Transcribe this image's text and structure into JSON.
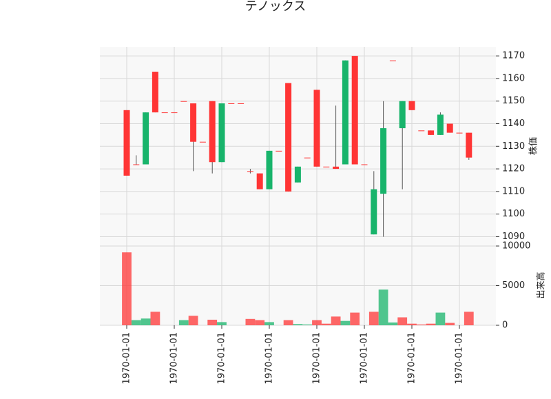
{
  "chart_data": {
    "type": "candlestick",
    "title": "テノックス",
    "ylabel": "株価",
    "volume_label": "出来高",
    "categories": [
      "1970-01-01",
      null,
      null,
      null,
      null,
      "1970-01-01",
      null,
      null,
      null,
      null,
      "1970-01-01",
      null,
      null,
      null,
      null,
      "1970-01-01",
      null,
      null,
      null,
      null,
      "1970-01-01",
      null,
      null,
      null,
      null,
      "1970-01-01",
      null,
      null,
      null,
      null,
      "1970-01-01",
      null,
      null,
      null,
      null,
      "1970-01-01",
      null
    ],
    "open": [
      1146,
      1122,
      1122,
      1163,
      1145,
      1145,
      1150,
      1149,
      1132,
      1150,
      1123,
      1149,
      1149,
      1119,
      1118,
      1111,
      1128,
      1158,
      1114,
      1125,
      1155,
      1121,
      1121,
      1122,
      1170,
      1122,
      1091,
      1109,
      1168,
      1138,
      1150,
      1137,
      1137,
      1135,
      1140,
      1136,
      1136
    ],
    "high": [
      1146,
      1126,
      1145,
      1163,
      1145,
      1145,
      1150,
      1149,
      1132,
      1150,
      1149,
      1149,
      1149,
      1120,
      1118,
      1128,
      1128,
      1158,
      1121,
      1125,
      1155,
      1121,
      1148,
      1168,
      1170,
      1122,
      1119,
      1150,
      1168,
      1150,
      1150,
      1137,
      1137,
      1145,
      1140,
      1136,
      1136
    ],
    "low": [
      1117,
      1122,
      1122,
      1145,
      1145,
      1145,
      1150,
      1119,
      1132,
      1118,
      1123,
      1149,
      1149,
      1118,
      1111,
      1111,
      1128,
      1110,
      1114,
      1125,
      1121,
      1121,
      1120,
      1122,
      1122,
      1122,
      1091,
      1090,
      1168,
      1111,
      1146,
      1137,
      1135,
      1135,
      1136,
      1136,
      1124
    ],
    "close": [
      1117,
      1122,
      1145,
      1145,
      1145,
      1145,
      1150,
      1132,
      1132,
      1123,
      1149,
      1149,
      1149,
      1119,
      1111,
      1128,
      1128,
      1110,
      1121,
      1125,
      1121,
      1121,
      1120,
      1168,
      1122,
      1122,
      1111,
      1138,
      1168,
      1150,
      1146,
      1137,
      1135,
      1144,
      1136,
      1136,
      1125
    ],
    "volume": [
      9200,
      650,
      850,
      1700,
      0,
      0,
      650,
      1200,
      0,
      700,
      400,
      0,
      0,
      800,
      650,
      400,
      0,
      650,
      150,
      100,
      650,
      200,
      1100,
      550,
      1600,
      0,
      1700,
      4500,
      350,
      1000,
      200,
      100,
      200,
      1600,
      300,
      0,
      1700
    ],
    "up_color": "#18b46b",
    "down_color": "#ff3535",
    "ylim": [
      1088,
      1174
    ],
    "yticks": [
      1090,
      1100,
      1110,
      1120,
      1130,
      1140,
      1150,
      1160,
      1170
    ],
    "volume_ylim": [
      0,
      10000
    ],
    "volume_ticks": [
      0,
      5000,
      10000
    ],
    "grid": true
  }
}
